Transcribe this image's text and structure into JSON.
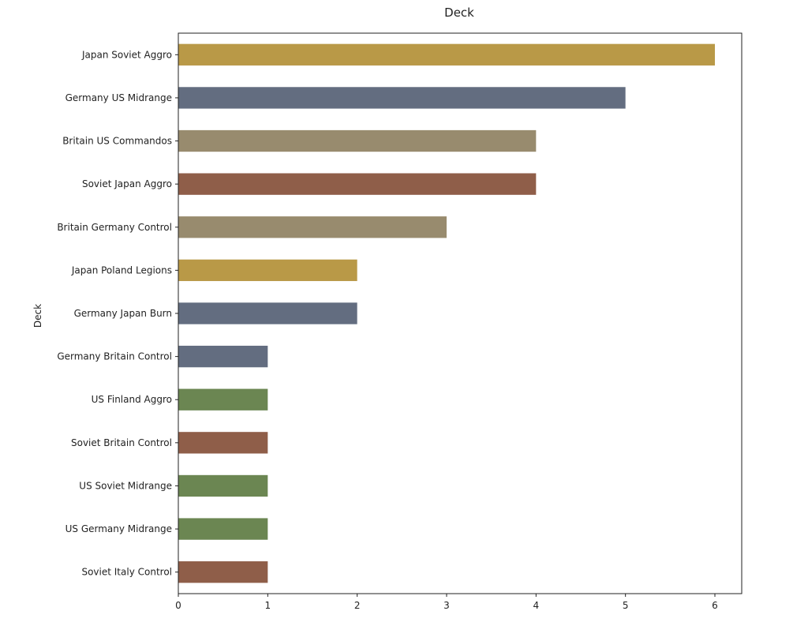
{
  "chart_data": {
    "type": "bar",
    "orientation": "horizontal",
    "title": "Deck",
    "xlabel": "",
    "ylabel": "Deck",
    "xlim": [
      0,
      6.3
    ],
    "xticks": [
      0,
      1,
      2,
      3,
      4,
      5,
      6
    ],
    "grid": false,
    "legend": "none",
    "categories": [
      "Japan Soviet Aggro",
      "Germany US Midrange",
      "Britain US Commandos",
      "Soviet Japan Aggro",
      "Britain Germany Control",
      "Japan Poland Legions",
      "Germany Japan Burn",
      "Germany Britain Control",
      "US Finland Aggro",
      "Soviet Britain Control",
      "US Soviet Midrange",
      "US Germany Midrange",
      "Soviet Italy Control"
    ],
    "values": [
      6,
      5,
      4,
      4,
      3,
      2,
      2,
      1,
      1,
      1,
      1,
      1,
      1
    ],
    "colors": [
      "#b99947",
      "#636d80",
      "#988b6e",
      "#8f5e49",
      "#988b6e",
      "#b99947",
      "#636d80",
      "#636d80",
      "#6b8652",
      "#8f5e49",
      "#6b8652",
      "#6b8652",
      "#8f5e49"
    ]
  }
}
